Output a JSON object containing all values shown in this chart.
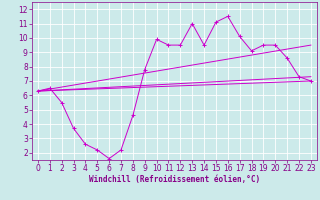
{
  "xlabel": "Windchill (Refroidissement éolien,°C)",
  "xlim": [
    -0.5,
    23.5
  ],
  "ylim": [
    1.5,
    12.5
  ],
  "xticks": [
    0,
    1,
    2,
    3,
    4,
    5,
    6,
    7,
    8,
    9,
    10,
    11,
    12,
    13,
    14,
    15,
    16,
    17,
    18,
    19,
    20,
    21,
    22,
    23
  ],
  "yticks": [
    2,
    3,
    4,
    5,
    6,
    7,
    8,
    9,
    10,
    11,
    12
  ],
  "bg_color": "#cceaea",
  "grid_color": "#ffffff",
  "line_color": "#cc00cc",
  "spine_color": "#880088",
  "series1_x": [
    0,
    1,
    2,
    3,
    4,
    5,
    6,
    7,
    8,
    9,
    10,
    11,
    12,
    13,
    14,
    15,
    16,
    17,
    18,
    19,
    20,
    21,
    22,
    23
  ],
  "series1_y": [
    6.3,
    6.5,
    5.5,
    3.7,
    2.6,
    2.2,
    1.6,
    2.2,
    4.6,
    7.8,
    9.9,
    9.5,
    9.5,
    11.0,
    9.5,
    11.1,
    11.5,
    10.1,
    9.1,
    9.5,
    9.5,
    8.6,
    7.3,
    7.0
  ],
  "series2_x": [
    0,
    23
  ],
  "series2_y": [
    6.3,
    7.0
  ],
  "series3_x": [
    0,
    23
  ],
  "series3_y": [
    6.3,
    9.5
  ],
  "series4_x": [
    0,
    23
  ],
  "series4_y": [
    6.3,
    7.3
  ],
  "lw": 0.7,
  "marker_size": 2.5,
  "tick_labelsize": 5.5,
  "xlabel_fontsize": 5.5
}
